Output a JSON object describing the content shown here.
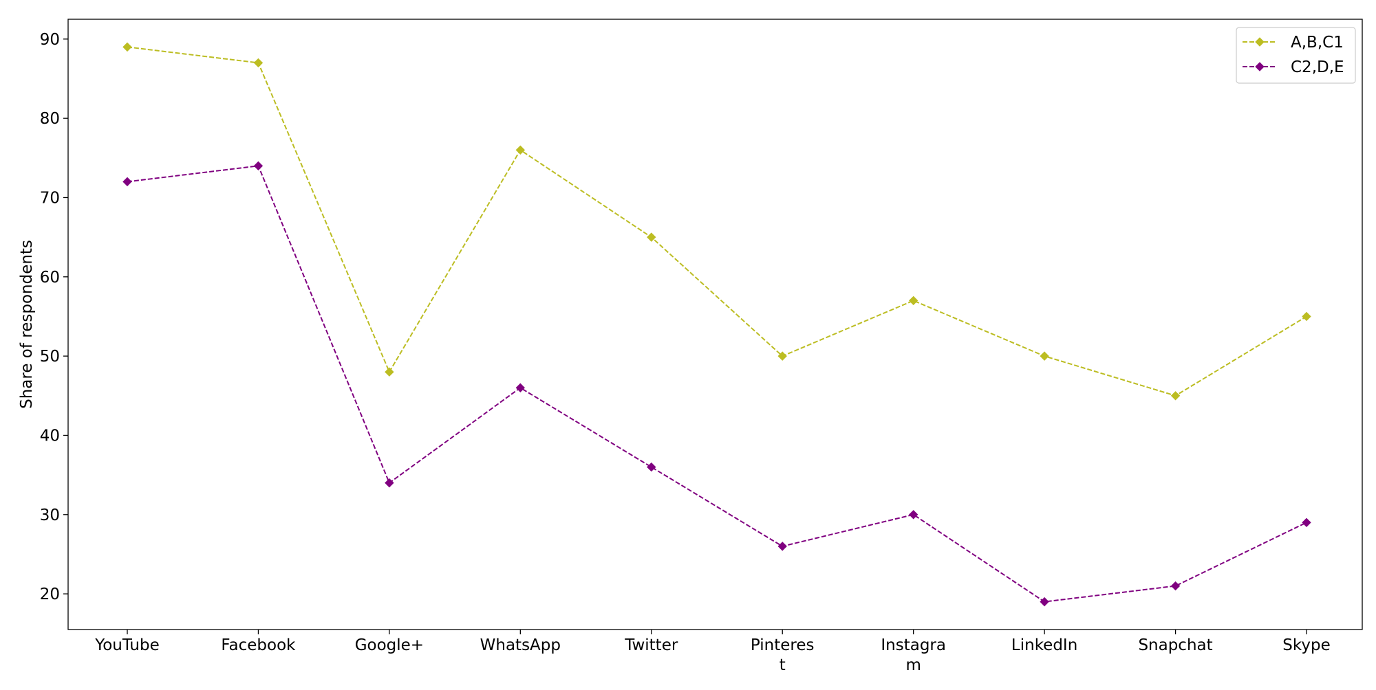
{
  "chart_data": {
    "type": "line",
    "title": "",
    "xlabel": "",
    "ylabel": "Share of respondents",
    "categories": [
      "YouTube",
      "Facebook",
      "Google+",
      "WhatsApp",
      "Twitter",
      "Pinteres\nt",
      "Instagra\nm",
      "LinkedIn",
      "Snapchat",
      "Skype"
    ],
    "ylim": [
      15.5,
      92.5
    ],
    "yticks": [
      20,
      30,
      40,
      50,
      60,
      70,
      80,
      90
    ],
    "grid": false,
    "legend_position": "top-right",
    "series": [
      {
        "name": "A,B,C1",
        "color": "#bcbd22",
        "line_style": "dashed",
        "marker": "diamond",
        "values": [
          89,
          87,
          48,
          76,
          65,
          50,
          57,
          50,
          45,
          55
        ]
      },
      {
        "name": "C2,D,E",
        "color": "#800080",
        "line_style": "dashed",
        "marker": "diamond",
        "values": [
          72,
          74,
          34,
          46,
          36,
          26,
          30,
          19,
          21,
          29
        ]
      }
    ]
  }
}
